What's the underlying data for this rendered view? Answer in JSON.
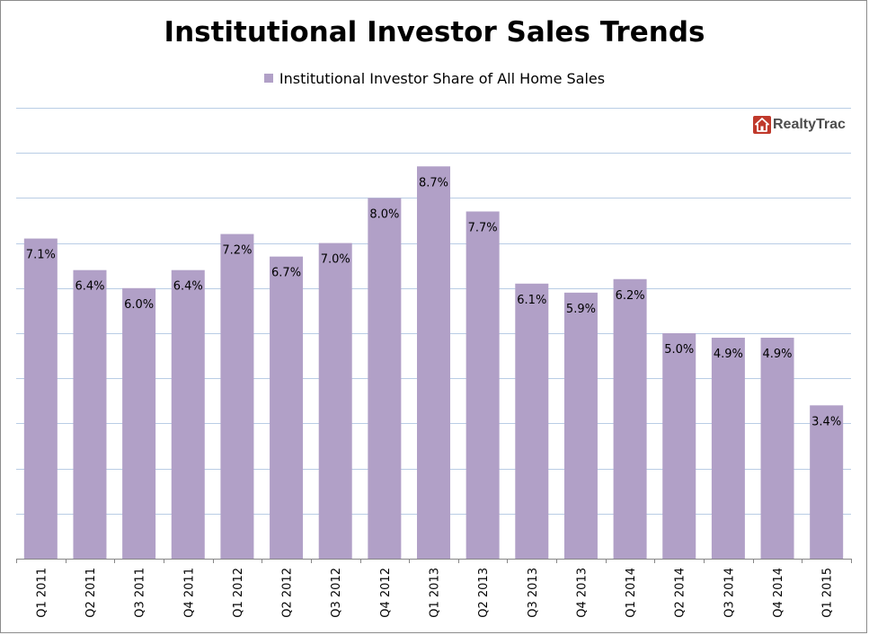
{
  "chart_data": {
    "type": "bar",
    "title": "Institutional Investor Sales Trends",
    "categories": [
      "Q1 2011",
      "Q2 2011",
      "Q3 2011",
      "Q4 2011",
      "Q1 2012",
      "Q2 2012",
      "Q3 2012",
      "Q4 2012",
      "Q1 2013",
      "Q2 2013",
      "Q3 2013",
      "Q4 2013",
      "Q1 2014",
      "Q2 2014",
      "Q3 2014",
      "Q4 2014",
      "Q1 2015"
    ],
    "series": [
      {
        "name": "Institutional Investor Share of All Home Sales",
        "values": [
          7.1,
          6.4,
          6.0,
          6.4,
          7.2,
          6.7,
          7.0,
          8.0,
          8.7,
          7.7,
          6.1,
          5.9,
          6.2,
          5.0,
          4.9,
          4.9,
          3.4
        ],
        "labels": [
          "7.1%",
          "6.4%",
          "6.0%",
          "6.4%",
          "7.2%",
          "6.7%",
          "7.0%",
          "8.0%",
          "8.7%",
          "7.7%",
          "6.1%",
          "5.9%",
          "6.2%",
          "5.0%",
          "4.9%",
          "4.9%",
          "3.4%"
        ],
        "color": "#b1a0c7"
      }
    ],
    "ylim": [
      0,
      10
    ],
    "grid": true,
    "legend_position": "top-center",
    "gridline_color": "#b9cde5",
    "axis_color": "#868686"
  },
  "logo": {
    "text": "RealtyTrac",
    "icon": "house-icon",
    "icon_color": "#c0392b"
  }
}
